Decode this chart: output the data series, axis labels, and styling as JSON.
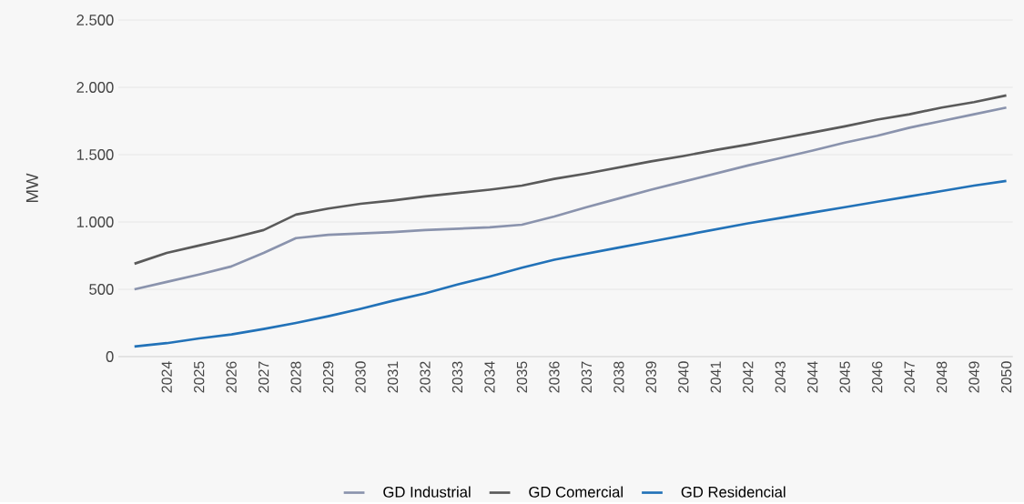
{
  "chart_data": {
    "type": "line",
    "ylabel": "MW",
    "categories": [
      null,
      "2024",
      "2025",
      "2026",
      "2027",
      "2028",
      "2029",
      "2030",
      "2031",
      "2032",
      "2033",
      "2034",
      "2035",
      "2036",
      "2037",
      "2038",
      "2039",
      "2040",
      "2041",
      "2042",
      "2043",
      "2044",
      "2045",
      "2046",
      "2047",
      "2048",
      "2049",
      "2050"
    ],
    "series": [
      {
        "name": "GD Industrial",
        "color": "#8a93ad",
        "values": [
          500,
          555,
          610,
          670,
          770,
          880,
          905,
          915,
          925,
          940,
          950,
          960,
          980,
          1040,
          1110,
          1175,
          1240,
          1300,
          1360,
          1420,
          1475,
          1530,
          1590,
          1640,
          1700,
          1750,
          1800,
          1850
        ]
      },
      {
        "name": "GD Comercial",
        "color": "#5a5a5a",
        "values": [
          690,
          770,
          825,
          880,
          940,
          1055,
          1100,
          1135,
          1160,
          1190,
          1215,
          1240,
          1270,
          1320,
          1360,
          1405,
          1450,
          1490,
          1535,
          1575,
          1620,
          1665,
          1710,
          1760,
          1800,
          1850,
          1890,
          1940
        ]
      },
      {
        "name": "GD Residencial",
        "color": "#2272b8",
        "values": [
          75,
          100,
          135,
          165,
          205,
          250,
          300,
          355,
          415,
          470,
          535,
          595,
          660,
          720,
          765,
          810,
          855,
          900,
          945,
          990,
          1030,
          1070,
          1110,
          1150,
          1190,
          1230,
          1270,
          1305
        ]
      }
    ],
    "ylim": [
      0,
      2500
    ],
    "yticks": [
      0,
      500,
      {
        "value": 1000,
        "label": "1.000"
      },
      {
        "value": 1500,
        "label": "1.500"
      },
      {
        "value": 2000,
        "label": "2.000"
      },
      {
        "value": 2500,
        "label": "2.500"
      }
    ],
    "grid": "y",
    "legend": "bottom",
    "marker": "none",
    "line_style": "solid"
  }
}
